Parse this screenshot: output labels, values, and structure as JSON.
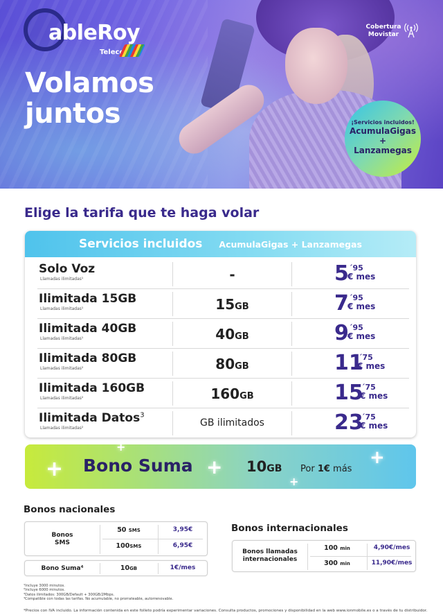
{
  "brand": {
    "logo_text": "ableRoy",
    "logo_sub": "Telecom"
  },
  "hero": {
    "title_line1": "Volamos",
    "title_line2": "juntos",
    "cobertura_line1": "Cobertura",
    "cobertura_line2": "Movistar"
  },
  "badge": {
    "line1": "¡Servicios incluidos!",
    "line2": "AcumulaGigas",
    "line3": "+",
    "line4": "Lanzamegas"
  },
  "section_title": "Elige la tarifa que te haga volar",
  "table": {
    "header_main": "Servicios incluidos",
    "header_sub": "AcumulaGigas  +  Lanzamegas",
    "rows": [
      {
        "name": "Solo Voz",
        "sup": "",
        "note": "Llamadas ilimitadas¹",
        "data": "-",
        "unit": "",
        "price_int": "5",
        "price_dec": "´95",
        "price_mes": "€ mes"
      },
      {
        "name": "Ilimitada 15GB",
        "sup": "",
        "note": "Llamadas ilimitadas¹",
        "data": "15",
        "unit": "GB",
        "price_int": "7",
        "price_dec": "´95",
        "price_mes": "€ mes"
      },
      {
        "name": "Ilimitada 40GB",
        "sup": "",
        "note": "Llamadas ilimitadas¹",
        "data": "40",
        "unit": "GB",
        "price_int": "9",
        "price_dec": "´95",
        "price_mes": "€ mes"
      },
      {
        "name": "Ilimitada 80GB",
        "sup": "",
        "note": "Llamadas ilimitadas²",
        "data": "80",
        "unit": "GB",
        "price_int": "11",
        "price_dec": "´75",
        "price_mes": "€ mes"
      },
      {
        "name": "Ilimitada 160GB",
        "sup": "",
        "note": "Llamadas ilimitadas²",
        "data": "160",
        "unit": "GB",
        "price_int": "15",
        "price_dec": "´75",
        "price_mes": "€ mes"
      },
      {
        "name": "Ilimitada Datos",
        "sup": "3",
        "note": "Llamadas ilimitadas²",
        "data": "GB ilimitados",
        "unit": "",
        "price_int": "23",
        "price_dec": "´75",
        "price_mes": "€ mes"
      }
    ]
  },
  "bono_suma": {
    "title": "Bono Suma",
    "data": "10",
    "unit": "GB",
    "price_prefix": "Por ",
    "price_bold": "1€",
    "price_suffix": " más"
  },
  "bonos_nacionales": {
    "title": "Bonos nacionales",
    "sms_label_1": "Bonos",
    "sms_label_2": "SMS",
    "sms_rows": [
      {
        "qty": "50",
        "unit": "SMS",
        "price": "3,95€"
      },
      {
        "qty": "100",
        "unit": "SMS",
        "price": "6,95€"
      }
    ],
    "suma_label": "Bono Suma⁴",
    "suma_qty": "10",
    "suma_unit": "GB",
    "suma_price": "1€/mes"
  },
  "bonos_internacionales": {
    "title": "Bonos internacionales",
    "label_1": "Bonos llamadas",
    "label_2": "internacionales",
    "rows": [
      {
        "qty": "100",
        "unit": "min",
        "price": "4,90€/mes"
      },
      {
        "qty": "300",
        "unit": "min",
        "price": "11,90€/mes"
      }
    ]
  },
  "footnotes": [
    "¹Incluye 3000 minutos.",
    "²Incluye 6000 minutos.",
    "³Datos ilimitados: 300GB/Default + 300GB/2Mbps.",
    "⁴Compatible con todas las tarifas. No acumulable, no prorrateable, autorrenovable."
  ],
  "footer": "*Precios con IVA incluido. La información contenida en este folleto podría experimentar variaciones. Consulta productos, promociones y disponibilidad en la web www.ionmobile.es o a través de tu distribuidor."
}
